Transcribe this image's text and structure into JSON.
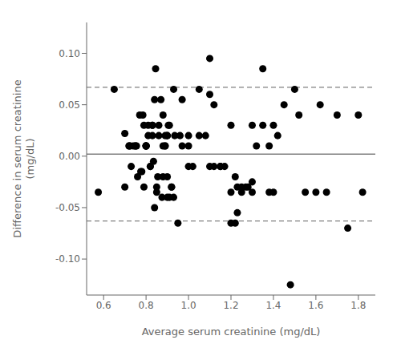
{
  "chart_data": {
    "type": "scatter",
    "xlabel": "Average serum creatinine (mg/dL)",
    "ylabel": "Difference in serum creatinine\n(mg/dL)",
    "xlim": [
      0.52,
      1.88
    ],
    "ylim": [
      -0.135,
      0.13
    ],
    "xticks": [
      0.6,
      0.8,
      {
        "value": 1.0,
        "label": "1.0"
      },
      1.2,
      1.4,
      1.6,
      1.8
    ],
    "yticks": [
      {
        "value": -0.1,
        "label": "-0.10"
      },
      -0.05,
      {
        "value": 0,
        "label": "0.00"
      },
      0.05,
      {
        "value": 0.1,
        "label": "0.10"
      }
    ],
    "grid": false,
    "color": "black",
    "marker": "circle",
    "reference_lines": [
      {
        "value": 0.002,
        "color": "gray",
        "line_style": "solid"
      },
      {
        "value": 0.067,
        "color": "gray",
        "line_style": "dashed"
      },
      {
        "value": -0.063,
        "color": "gray",
        "line_style": "dashed"
      }
    ],
    "x": [
      0.575,
      0.65,
      0.7,
      0.7,
      0.72,
      0.72,
      0.725,
      0.73,
      0.74,
      0.75,
      0.75,
      0.755,
      0.76,
      0.77,
      0.775,
      0.78,
      0.785,
      0.79,
      0.79,
      0.8,
      0.8,
      0.8,
      0.8,
      0.8,
      0.81,
      0.81,
      0.82,
      0.82,
      0.83,
      0.83,
      0.83,
      0.835,
      0.84,
      0.84,
      0.845,
      0.85,
      0.85,
      0.855,
      0.86,
      0.86,
      0.87,
      0.875,
      0.88,
      0.88,
      0.88,
      0.89,
      0.89,
      0.89,
      0.9,
      0.9,
      0.9,
      0.9,
      0.905,
      0.91,
      0.91,
      0.92,
      0.92,
      0.93,
      0.93,
      0.935,
      0.95,
      0.96,
      0.97,
      0.97,
      1.0,
      1.0,
      1.0,
      1.02,
      1.05,
      1.05,
      1.08,
      1.1,
      1.1,
      1.1,
      1.12,
      1.12,
      1.15,
      1.15,
      1.17,
      1.2,
      1.2,
      1.2,
      1.22,
      1.22,
      1.23,
      1.23,
      1.25,
      1.25,
      1.27,
      1.28,
      1.3,
      1.3,
      1.3,
      1.32,
      1.35,
      1.35,
      1.38,
      1.38,
      1.4,
      1.4,
      1.42,
      1.45,
      1.48,
      1.5,
      1.52,
      1.55,
      1.6,
      1.62,
      1.65,
      1.7,
      1.75,
      1.8,
      1.82
    ],
    "values": [
      -0.035,
      0.065,
      0.022,
      -0.03,
      0.01,
      0.01,
      0.01,
      -0.01,
      0.01,
      0.01,
      0.01,
      0.01,
      -0.02,
      0.04,
      -0.015,
      -0.015,
      0.04,
      0.03,
      -0.03,
      0.01,
      0.01,
      0.01,
      0.01,
      0.01,
      0.03,
      0.02,
      -0.01,
      -0.01,
      0.03,
      0.03,
      0.02,
      -0.005,
      0.055,
      -0.05,
      0.085,
      -0.03,
      -0.035,
      -0.02,
      0.02,
      0.03,
      0.055,
      -0.04,
      -0.02,
      0.01,
      0.04,
      0.01,
      0.01,
      0.02,
      -0.04,
      0.02,
      0.02,
      -0.02,
      0.03,
      -0.04,
      0.03,
      -0.03,
      -0.03,
      0.065,
      -0.04,
      0.02,
      -0.065,
      0.02,
      0.055,
      0.01,
      0.01,
      0.02,
      -0.01,
      -0.01,
      0.065,
      0.02,
      0.02,
      0.095,
      0.06,
      -0.01,
      -0.01,
      0.05,
      -0.01,
      -0.01,
      -0.01,
      -0.035,
      0.03,
      -0.065,
      -0.065,
      -0.02,
      -0.055,
      -0.03,
      -0.03,
      -0.035,
      -0.03,
      -0.03,
      -0.025,
      0.03,
      -0.035,
      0.01,
      0.085,
      0.03,
      -0.035,
      0.01,
      -0.035,
      0.03,
      0.02,
      0.05,
      -0.125,
      0.065,
      0.04,
      -0.035,
      -0.035,
      0.05,
      -0.035,
      0.04,
      -0.07,
      0.04,
      -0.035
    ]
  }
}
